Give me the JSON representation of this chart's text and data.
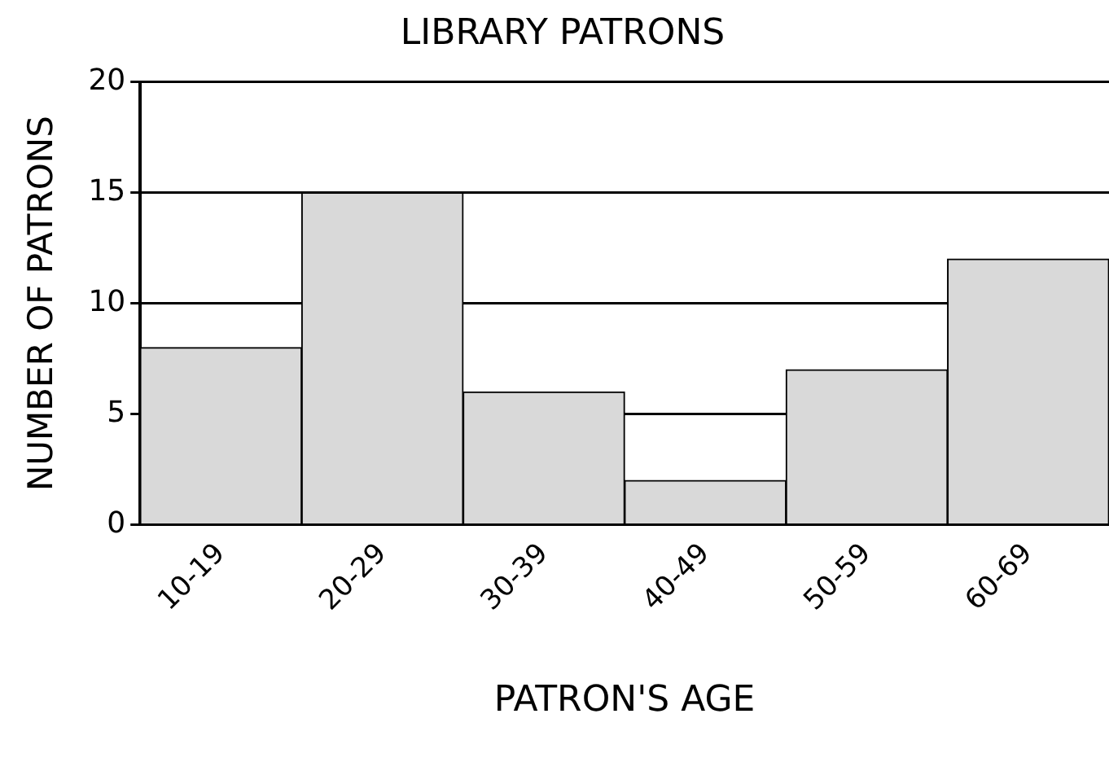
{
  "chart_data": {
    "type": "bar",
    "title": "LIBRARY PATRONS",
    "xlabel": "PATRON'S AGE",
    "ylabel": "NUMBER OF PATRONS",
    "categories": [
      "10-19",
      "20-29",
      "30-39",
      "40-49",
      "50-59",
      "60-69"
    ],
    "values": [
      8,
      15,
      6,
      2,
      7,
      12
    ],
    "color": "#d9d9d9",
    "ylim": [
      0,
      20
    ],
    "yticks": [
      0,
      5,
      10,
      15,
      20
    ],
    "grid": "y",
    "legend": false
  }
}
